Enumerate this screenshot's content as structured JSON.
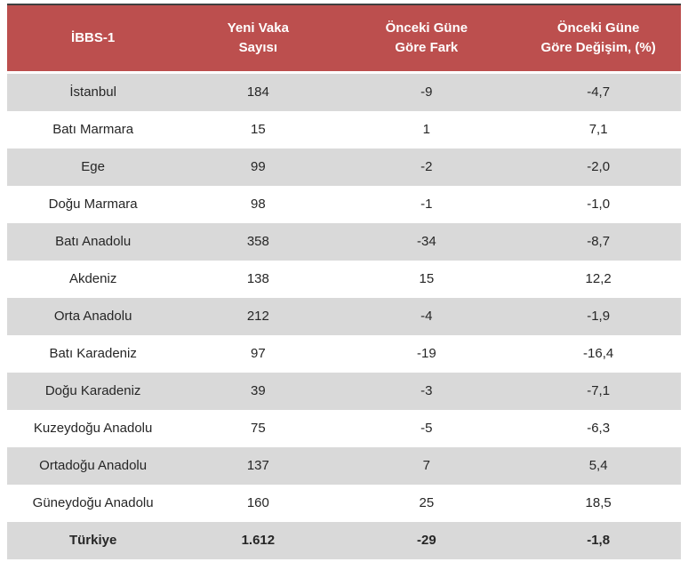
{
  "colors": {
    "header_bg": "#BC4F4E",
    "header_text": "#FFFFFF",
    "row_alt_bg": "#D9D9D9",
    "row_bg": "#FFFFFF",
    "body_text": "#262626",
    "top_border": "#3F3F3F"
  },
  "table": {
    "headers": [
      "İBBS-1",
      "Yeni Vaka\nSayısı",
      "Önceki Güne\nGöre Fark",
      "Önceki Güne\nGöre Değişim, (%)"
    ]
  },
  "chart_data": {
    "type": "table",
    "title": "",
    "columns": [
      "İBBS-1",
      "Yeni Vaka Sayısı",
      "Önceki Güne Göre Fark",
      "Önceki Güne Göre Değişim, (%)"
    ],
    "rows": [
      [
        "İstanbul",
        "184",
        "-9",
        "-4,7"
      ],
      [
        "Batı Marmara",
        "15",
        "1",
        "7,1"
      ],
      [
        "Ege",
        "99",
        "-2",
        "-2,0"
      ],
      [
        "Doğu Marmara",
        "98",
        "-1",
        "-1,0"
      ],
      [
        "Batı Anadolu",
        "358",
        "-34",
        "-8,7"
      ],
      [
        "Akdeniz",
        "138",
        "15",
        "12,2"
      ],
      [
        "Orta Anadolu",
        "212",
        "-4",
        "-1,9"
      ],
      [
        "Batı Karadeniz",
        "97",
        "-19",
        "-16,4"
      ],
      [
        "Doğu Karadeniz",
        "39",
        "-3",
        "-7,1"
      ],
      [
        "Kuzeydoğu Anadolu",
        "75",
        "-5",
        "-6,3"
      ],
      [
        "Ortadoğu Anadolu",
        "137",
        "7",
        "5,4"
      ],
      [
        "Güneydoğu Anadolu",
        "160",
        "25",
        "18,5"
      ]
    ],
    "total_row": [
      "Türkiye",
      "1.612",
      "-29",
      "-1,8"
    ]
  }
}
